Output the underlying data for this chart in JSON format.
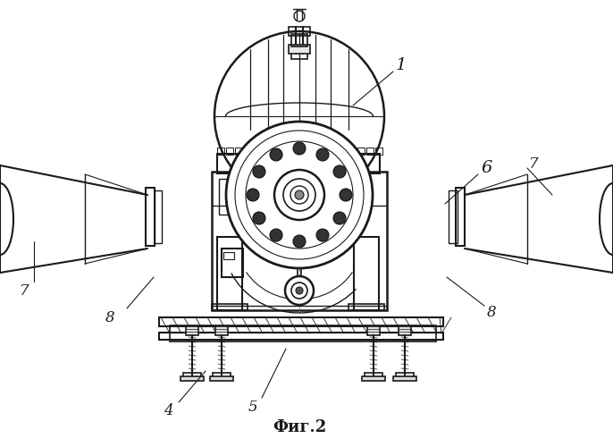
{
  "title": "Фиг.2",
  "bg_color": "#ffffff",
  "line_color": "#1a1a1a",
  "fig_width": 6.86,
  "fig_height": 5.0,
  "dpi": 100
}
